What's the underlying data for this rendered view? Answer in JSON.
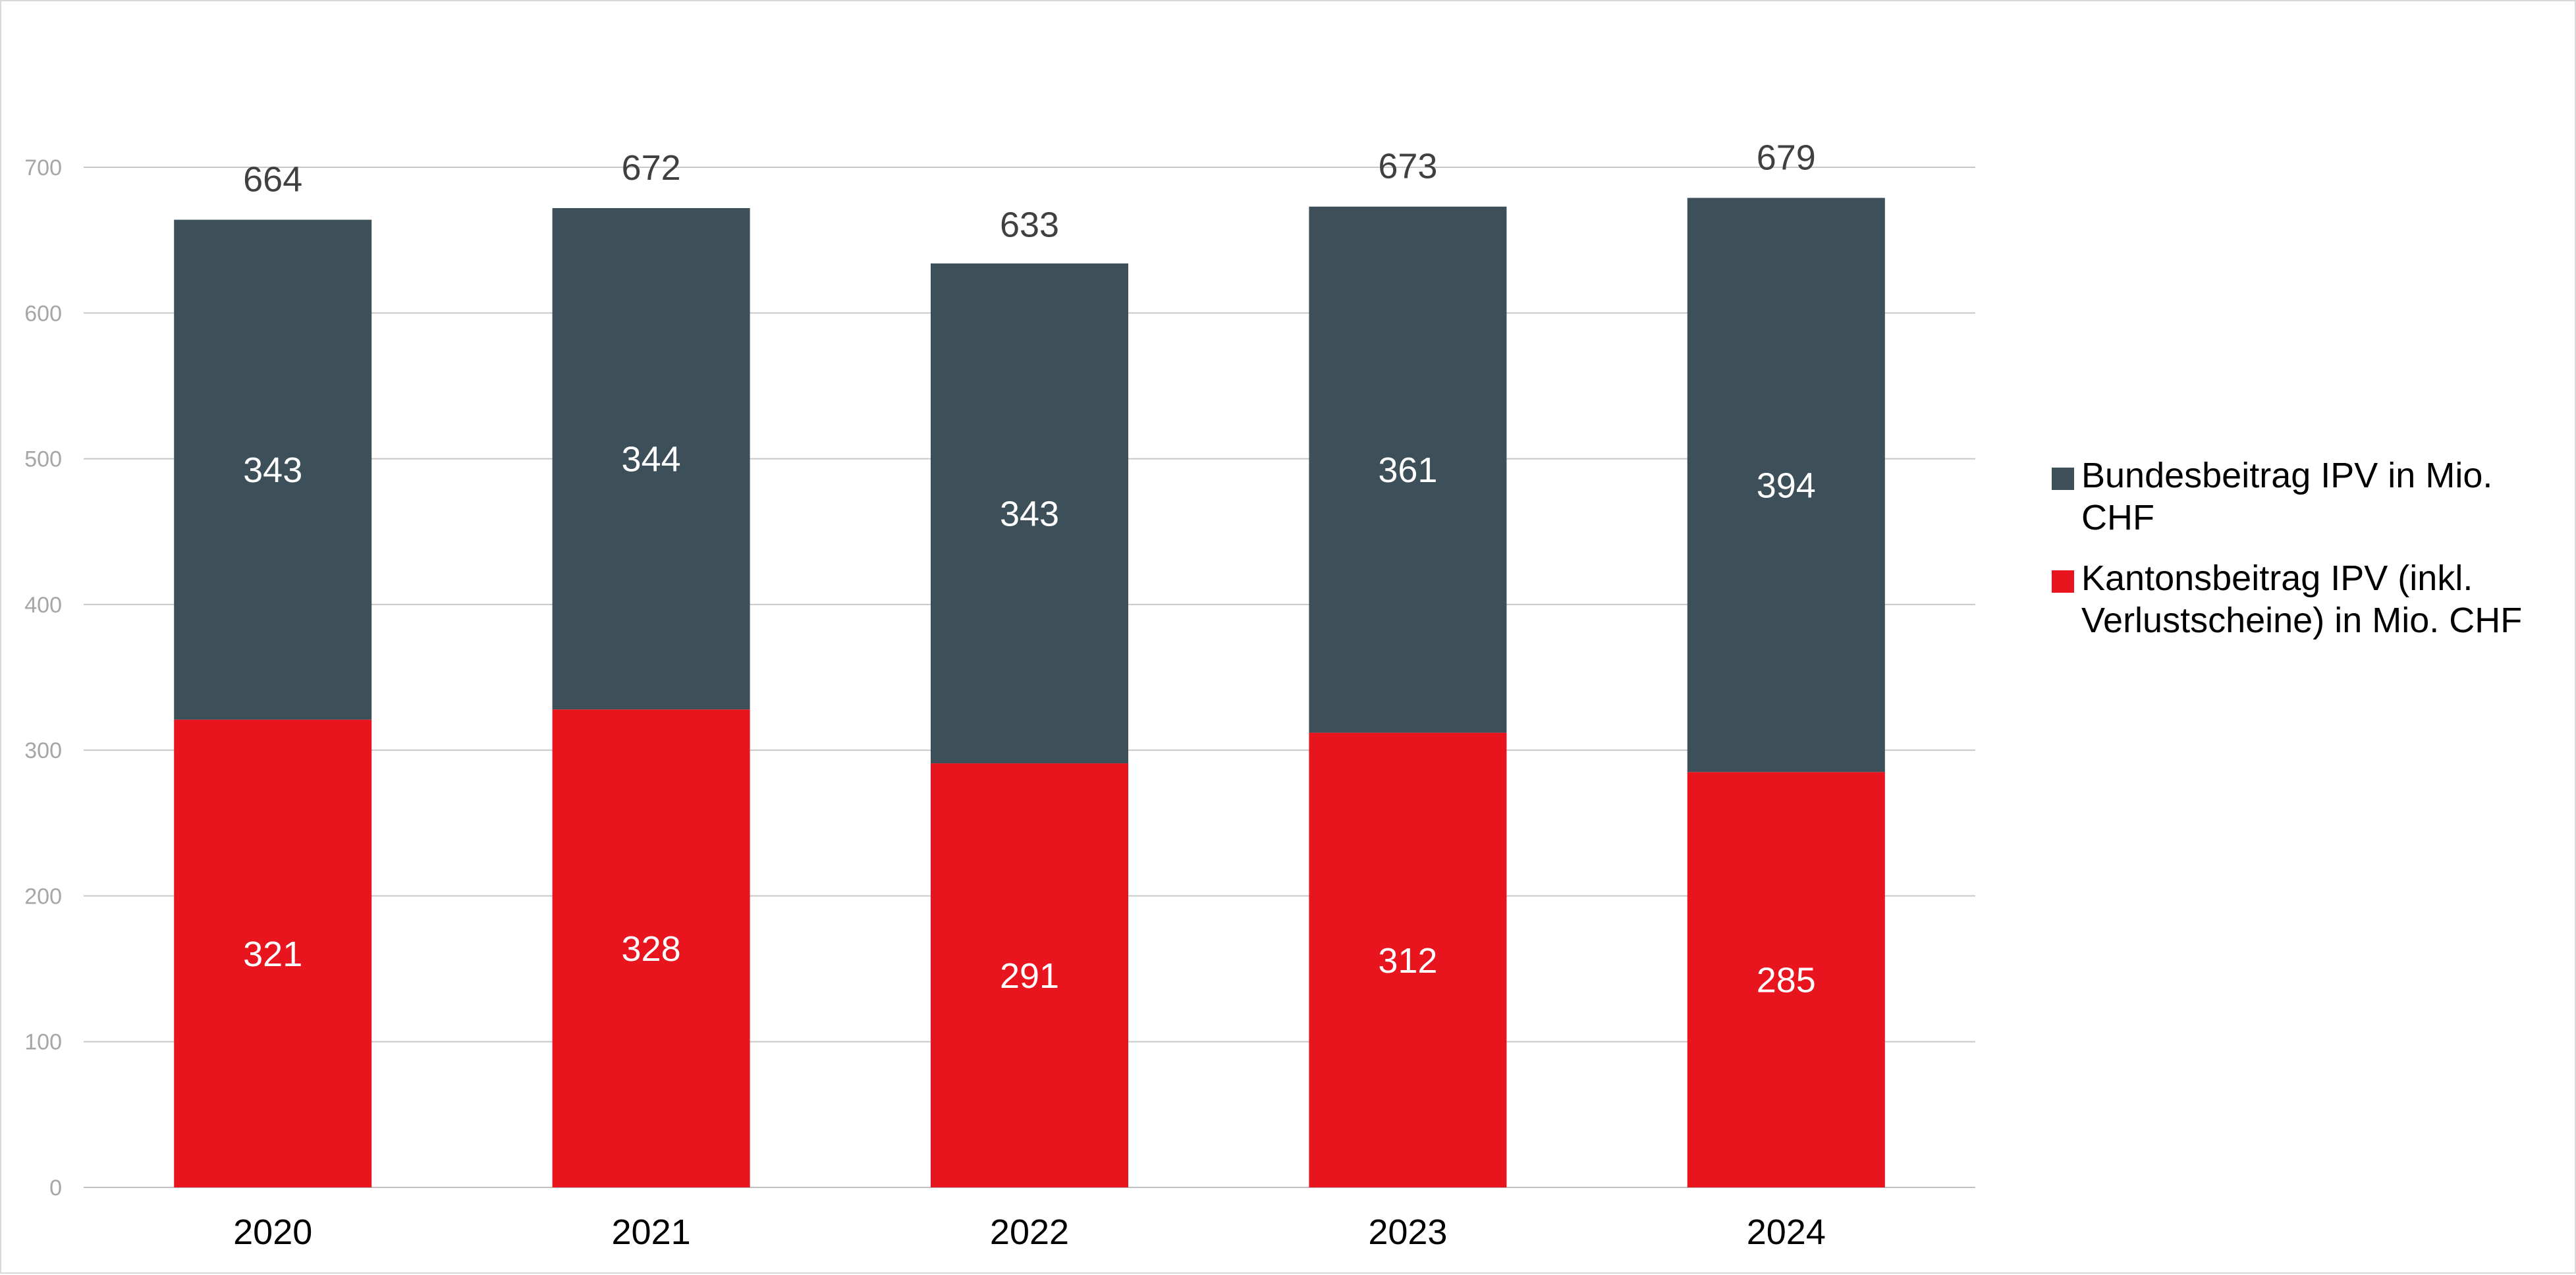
{
  "chart_data": {
    "type": "bar",
    "stacked": true,
    "categories": [
      "2020",
      "2021",
      "2022",
      "2023",
      "2024"
    ],
    "series": [
      {
        "name": "Kantonsbeitrag IPV (inkl. Verlustscheine) in Mio. CHF",
        "legend_lines": [
          "Kantonsbeitrag IPV (inkl.",
          "Verlustscheine) in Mio. CHF"
        ],
        "color": "#e8151f",
        "values": [
          321,
          328,
          291,
          312,
          285
        ]
      },
      {
        "name": "Bundesbeitrag IPV in Mio. CHF",
        "legend_lines": [
          "Bundesbeitrag IPV in Mio.",
          "CHF"
        ],
        "color": "#3d4f59",
        "values": [
          343,
          344,
          343,
          361,
          394
        ]
      }
    ],
    "totals": [
      664,
      672,
      633,
      673,
      679
    ],
    "ylim": [
      0,
      700
    ],
    "yticks": [
      0,
      100,
      200,
      300,
      400,
      500,
      600,
      700
    ],
    "grid": true,
    "legend_position": "right",
    "title": "",
    "xlabel": "",
    "ylabel": ""
  }
}
